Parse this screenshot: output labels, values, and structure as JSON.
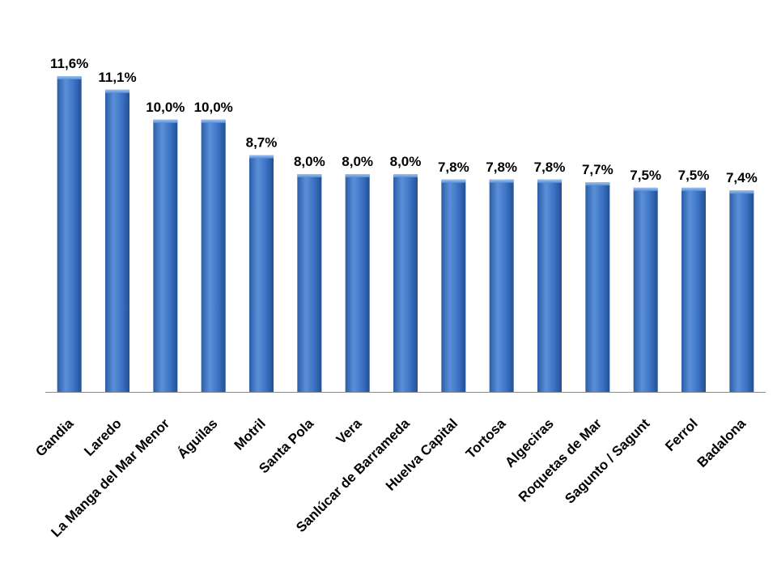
{
  "chart_data": {
    "type": "bar",
    "categories": [
      "Gandia",
      "Laredo",
      "La Manga del Mar Menor",
      "Águilas",
      "Motril",
      "Santa Pola",
      "Vera",
      "Sanlúcar de Barrameda",
      "Huelva Capital",
      "Tortosa",
      "Algeciras",
      "Roquetas de Mar",
      "Sagunto / Sagunt",
      "Ferrol",
      "Badalona"
    ],
    "values": [
      11.6,
      11.1,
      10.0,
      10.0,
      8.7,
      8.0,
      8.0,
      8.0,
      7.8,
      7.8,
      7.8,
      7.7,
      7.5,
      7.5,
      7.4
    ],
    "data_labels": [
      "11,6%",
      "11,1%",
      "10,0%",
      "10,0%",
      "8,7%",
      "8,0%",
      "8,0%",
      "8,0%",
      "7,8%",
      "7,8%",
      "7,8%",
      "7,7%",
      "7,5%",
      "7,5%",
      "7,4%"
    ],
    "title": "",
    "xlabel": "",
    "ylabel": "",
    "ylim": [
      0,
      11.6
    ],
    "grid": false,
    "legend": "none",
    "colors": {
      "bar_light": "#5b8fd8",
      "bar_mid": "#3b72c4",
      "bar_dark": "#234f91",
      "axis": "#8c8c8c"
    }
  }
}
